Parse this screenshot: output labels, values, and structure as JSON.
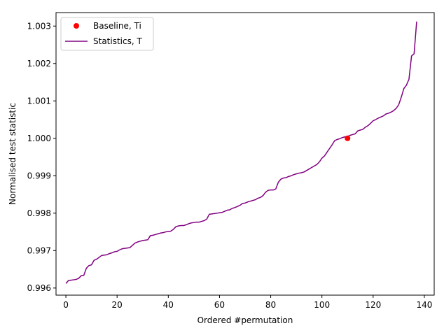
{
  "chart_data": {
    "type": "line",
    "xlabel": "Ordered #permutation",
    "ylabel": "Normalised test statistic",
    "xlim": [
      -3.85,
      143.85
    ],
    "ylim": [
      0.99581,
      1.00336
    ],
    "x_ticks": [
      0,
      20,
      40,
      60,
      80,
      100,
      120,
      140
    ],
    "x_tick_labels": [
      "0",
      "20",
      "40",
      "60",
      "80",
      "100",
      "120",
      "140"
    ],
    "y_ticks": [
      0.996,
      0.997,
      0.998,
      0.999,
      1.0,
      1.001,
      1.002,
      1.003
    ],
    "y_tick_labels": [
      "0.996",
      "0.997",
      "0.998",
      "0.999",
      "1.000",
      "1.001",
      "1.002",
      "1.003"
    ],
    "grid": false,
    "legend_position": "top-left",
    "series": [
      {
        "name": "Statistics, T",
        "kind": "line",
        "color": "#800080",
        "points": [
          [
            0,
            0.99612
          ],
          [
            1,
            0.9962
          ],
          [
            2,
            0.99621
          ],
          [
            3,
            0.99622
          ],
          [
            4,
            0.99623
          ],
          [
            5,
            0.99626
          ],
          [
            6,
            0.99633
          ],
          [
            7,
            0.99634
          ],
          [
            8,
            0.99653
          ],
          [
            9,
            0.9966
          ],
          [
            10,
            0.99662
          ],
          [
            11,
            0.99674
          ],
          [
            12,
            0.99677
          ],
          [
            13,
            0.99682
          ],
          [
            14,
            0.99687
          ],
          [
            15,
            0.99688
          ],
          [
            16,
            0.99689
          ],
          [
            17,
            0.99692
          ],
          [
            18,
            0.99694
          ],
          [
            19,
            0.99697
          ],
          [
            20,
            0.99698
          ],
          [
            21,
            0.99702
          ],
          [
            22,
            0.99705
          ],
          [
            23,
            0.99706
          ],
          [
            24,
            0.99707
          ],
          [
            25,
            0.99708
          ],
          [
            26,
            0.99714
          ],
          [
            27,
            0.9972
          ],
          [
            28,
            0.99723
          ],
          [
            29,
            0.99725
          ],
          [
            30,
            0.99727
          ],
          [
            31,
            0.99728
          ],
          [
            32,
            0.99729
          ],
          [
            33,
            0.9974
          ],
          [
            34,
            0.99741
          ],
          [
            35,
            0.99743
          ],
          [
            36,
            0.99745
          ],
          [
            37,
            0.99747
          ],
          [
            38,
            0.99748
          ],
          [
            39,
            0.9975
          ],
          [
            40,
            0.99751
          ],
          [
            41,
            0.99752
          ],
          [
            42,
            0.99757
          ],
          [
            43,
            0.99764
          ],
          [
            44,
            0.99766
          ],
          [
            45,
            0.99767
          ],
          [
            46,
            0.99767
          ],
          [
            47,
            0.99769
          ],
          [
            48,
            0.99772
          ],
          [
            49,
            0.99774
          ],
          [
            50,
            0.99775
          ],
          [
            51,
            0.99776
          ],
          [
            52,
            0.99776
          ],
          [
            53,
            0.99778
          ],
          [
            54,
            0.9978
          ],
          [
            55,
            0.99784
          ],
          [
            56,
            0.99797
          ],
          [
            57,
            0.99798
          ],
          [
            58,
            0.99799
          ],
          [
            59,
            0.998
          ],
          [
            60,
            0.99801
          ],
          [
            61,
            0.99802
          ],
          [
            62,
            0.99805
          ],
          [
            63,
            0.99808
          ],
          [
            64,
            0.99809
          ],
          [
            65,
            0.99813
          ],
          [
            66,
            0.99815
          ],
          [
            67,
            0.99818
          ],
          [
            68,
            0.99821
          ],
          [
            69,
            0.99826
          ],
          [
            70,
            0.99827
          ],
          [
            71,
            0.9983
          ],
          [
            72,
            0.99832
          ],
          [
            73,
            0.99834
          ],
          [
            74,
            0.99836
          ],
          [
            75,
            0.9984
          ],
          [
            76,
            0.99842
          ],
          [
            77,
            0.99847
          ],
          [
            78,
            0.99856
          ],
          [
            79,
            0.99861
          ],
          [
            80,
            0.99862
          ],
          [
            81,
            0.99862
          ],
          [
            82,
            0.99865
          ],
          [
            83,
            0.99883
          ],
          [
            84,
            0.99891
          ],
          [
            85,
            0.99894
          ],
          [
            86,
            0.99895
          ],
          [
            87,
            0.99898
          ],
          [
            88,
            0.999
          ],
          [
            89,
            0.99903
          ],
          [
            90,
            0.99905
          ],
          [
            91,
            0.99907
          ],
          [
            92,
            0.99908
          ],
          [
            93,
            0.9991
          ],
          [
            94,
            0.99914
          ],
          [
            95,
            0.99918
          ],
          [
            96,
            0.99922
          ],
          [
            97,
            0.99926
          ],
          [
            98,
            0.9993
          ],
          [
            99,
            0.99937
          ],
          [
            100,
            0.99947
          ],
          [
            101,
            0.99953
          ],
          [
            102,
            0.99963
          ],
          [
            103,
            0.99973
          ],
          [
            104,
            0.99983
          ],
          [
            105,
            0.99994
          ],
          [
            106,
            0.99997
          ],
          [
            107,
            0.99999
          ],
          [
            108,
            1.00002
          ],
          [
            109,
            1.00004
          ],
          [
            110,
            1.00005
          ],
          [
            111,
            1.00008
          ],
          [
            112,
            1.0001
          ],
          [
            113,
            1.00012
          ],
          [
            114,
            1.0002
          ],
          [
            115,
            1.00022
          ],
          [
            116,
            1.00024
          ],
          [
            117,
            1.0003
          ],
          [
            118,
            1.00034
          ],
          [
            119,
            1.0004
          ],
          [
            120,
            1.00047
          ],
          [
            121,
            1.0005
          ],
          [
            122,
            1.00054
          ],
          [
            123,
            1.00057
          ],
          [
            124,
            1.0006
          ],
          [
            125,
            1.00065
          ],
          [
            126,
            1.00067
          ],
          [
            127,
            1.0007
          ],
          [
            128,
            1.00074
          ],
          [
            129,
            1.0008
          ],
          [
            130,
            1.0009
          ],
          [
            131,
            1.0011
          ],
          [
            132,
            1.00133
          ],
          [
            133,
            1.00142
          ],
          [
            134,
            1.00158
          ],
          [
            135,
            1.0022
          ],
          [
            136,
            1.00226
          ],
          [
            137,
            1.00312
          ]
        ]
      },
      {
        "name": "Baseline, Ti",
        "kind": "scatter",
        "color": "#ff0000",
        "points": [
          [
            110,
            1.0
          ]
        ]
      }
    ]
  }
}
